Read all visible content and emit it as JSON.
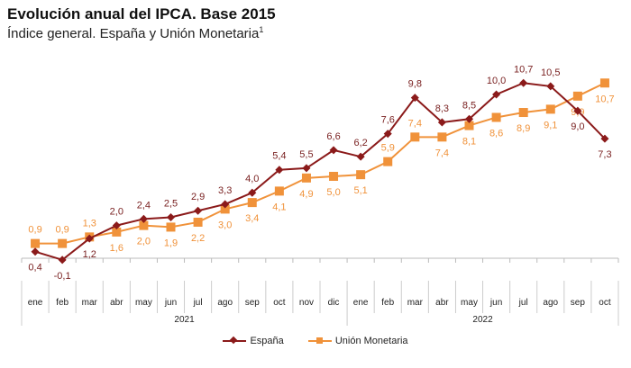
{
  "title": "Evolución anual del IPCA. Base 2015",
  "subtitle": "Índice general. España y Unión Monetaria",
  "subtitle_note": "1",
  "chart_data": {
    "type": "line",
    "title": "Evolución anual del IPCA. Base 2015",
    "categories": [
      "ene",
      "feb",
      "mar",
      "abr",
      "may",
      "jun",
      "jul",
      "ago",
      "sep",
      "oct",
      "nov",
      "dic",
      "ene",
      "feb",
      "mar",
      "abr",
      "may",
      "jun",
      "jul",
      "ago",
      "sep",
      "oct"
    ],
    "years": [
      {
        "label": "2021",
        "months": 12
      },
      {
        "label": "2022",
        "months": 10
      }
    ],
    "series": [
      {
        "name": "España",
        "color": "#8b1a1a",
        "marker": "diamond",
        "values": [
          0.4,
          -0.1,
          1.2,
          2.0,
          2.4,
          2.5,
          2.9,
          3.3,
          4.0,
          5.4,
          5.5,
          6.6,
          6.2,
          7.6,
          9.8,
          8.3,
          8.5,
          10.0,
          10.7,
          10.5,
          9.0,
          7.3
        ]
      },
      {
        "name": "Unión Monetaria",
        "color": "#f0923a",
        "marker": "square",
        "values": [
          0.9,
          0.9,
          1.3,
          1.6,
          2.0,
          1.9,
          2.2,
          3.0,
          3.4,
          4.1,
          4.9,
          5.0,
          5.1,
          5.9,
          7.4,
          7.4,
          8.1,
          8.6,
          8.9,
          9.1,
          9.9,
          10.7
        ]
      }
    ],
    "decimal_separator": ",",
    "legend": "bottom",
    "grid": false
  }
}
